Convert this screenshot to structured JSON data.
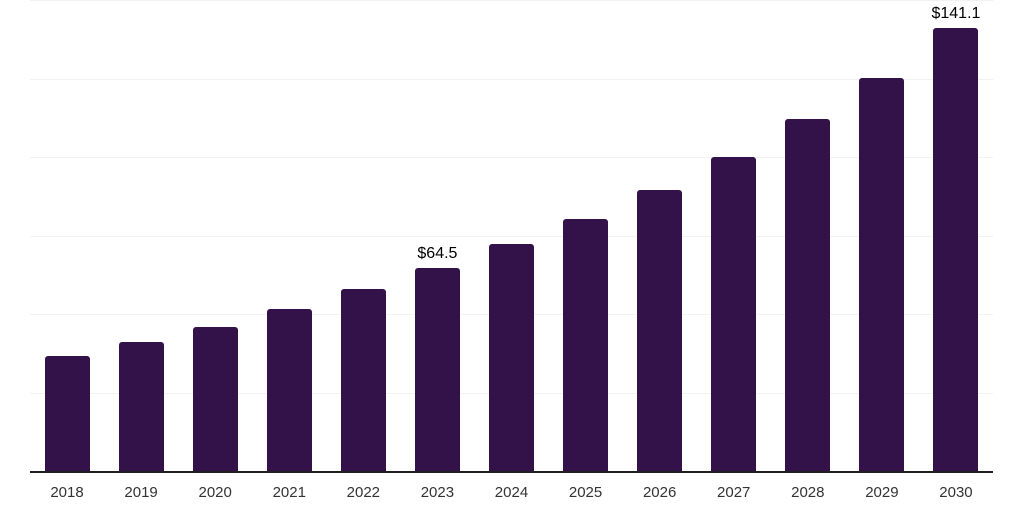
{
  "chart_data": {
    "type": "bar",
    "title": "",
    "xlabel": "",
    "ylabel": "",
    "categories": [
      "2018",
      "2019",
      "2020",
      "2021",
      "2022",
      "2023",
      "2024",
      "2025",
      "2026",
      "2027",
      "2028",
      "2029",
      "2030"
    ],
    "values": [
      36.5,
      41.1,
      46.0,
      51.6,
      57.9,
      64.5,
      72.2,
      80.2,
      89.4,
      99.9,
      112.1,
      125.3,
      141.1
    ],
    "data_labels": [
      {
        "category": "2023",
        "text": "$64.5"
      },
      {
        "category": "2030",
        "text": "$141.1"
      }
    ],
    "ylim": [
      0,
      150
    ],
    "gridline_interval": 25,
    "grid": "horizontal-only",
    "legend": "none",
    "y_axis_labels": "none",
    "colors": {
      "bar": "#33124a",
      "axis_line": "#1f1f1f",
      "gridline": "#f2f2f2",
      "tick_label": "#333333",
      "data_label": "#000000",
      "background": "#ffffff"
    }
  }
}
